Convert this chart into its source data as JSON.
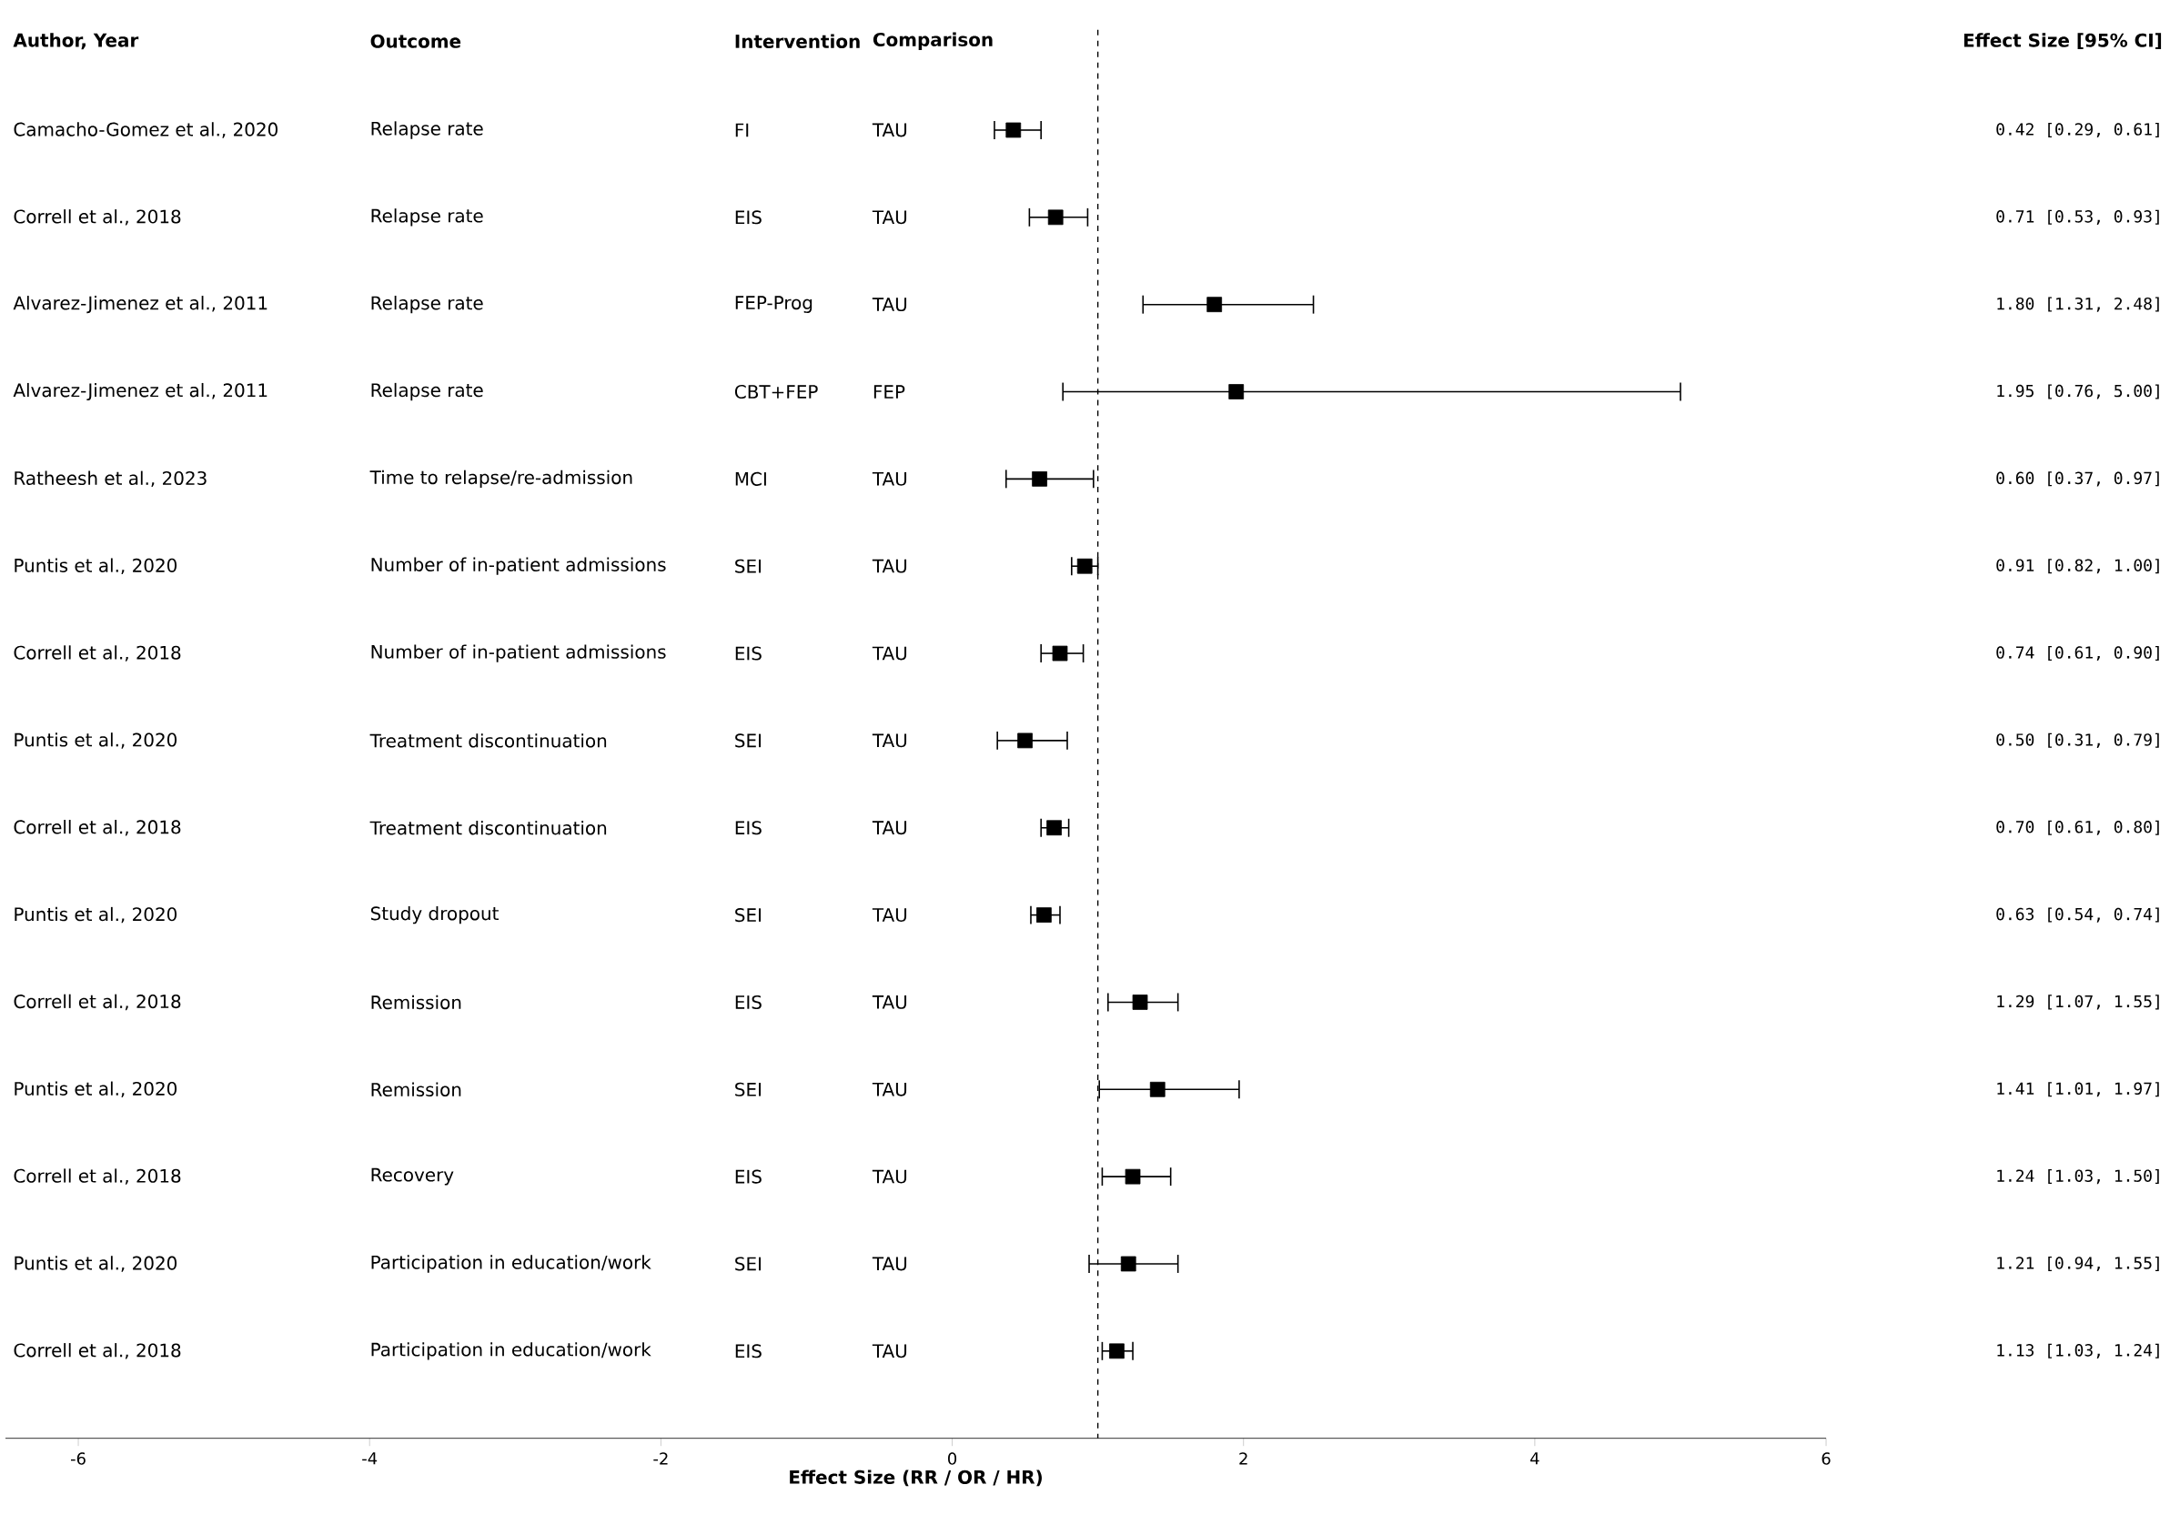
{
  "chart_data": {
    "type": "scatter",
    "orientation": "horizontal",
    "xlabel": "Effect Size (RR / OR / HR)",
    "categories": [
      "Camacho-Gomez et al., 2020",
      "Correll et al., 2018",
      "Alvarez-Jimenez et al., 2011",
      "Alvarez-Jimenez et al., 2011",
      "Ratheesh et al., 2023",
      "Puntis et al., 2020",
      "Correll et al., 2018",
      "Puntis et al., 2020",
      "Correll et al., 2018",
      "Puntis et al., 2020",
      "Correll et al., 2018",
      "Puntis et al., 2020",
      "Correll et al., 2018",
      "Puntis et al., 2020",
      "Correll et al., 2018"
    ],
    "values": [
      0.42,
      0.71,
      1.8,
      1.95,
      0.6,
      0.91,
      0.74,
      0.5,
      0.7,
      0.63,
      1.29,
      1.41,
      1.24,
      1.21,
      1.13
    ],
    "errors": [
      [
        0.29,
        0.61
      ],
      [
        0.53,
        0.93
      ],
      [
        1.31,
        2.48
      ],
      [
        0.76,
        5.0
      ],
      [
        0.37,
        0.97
      ],
      [
        0.82,
        1.0
      ],
      [
        0.61,
        0.9
      ],
      [
        0.31,
        0.79
      ],
      [
        0.61,
        0.8
      ],
      [
        0.54,
        0.74
      ],
      [
        1.07,
        1.55
      ],
      [
        1.01,
        1.97
      ],
      [
        1.03,
        1.5
      ],
      [
        0.94,
        1.55
      ],
      [
        1.03,
        1.24
      ]
    ],
    "value_labels": [
      "0.42 [0.29, 0.61]",
      "0.71 [0.53, 0.93]",
      "1.80 [1.31, 2.48]",
      "1.95 [0.76, 5.00]",
      "0.60 [0.37, 0.97]",
      "0.91 [0.82, 1.00]",
      "0.74 [0.61, 0.90]",
      "0.50 [0.31, 0.79]",
      "0.70 [0.61, 0.80]",
      "0.63 [0.54, 0.74]",
      "1.29 [1.07, 1.55]",
      "1.41 [1.01, 1.97]",
      "1.24 [1.03, 1.50]",
      "1.21 [0.94, 1.55]",
      "1.13 [1.03, 1.24]"
    ],
    "annotations": [
      "Author, Year",
      "Outcome",
      "Intervention",
      "Comparison",
      "Effect Size [95% CI]",
      "Relapse rate",
      "Relapse rate",
      "Relapse rate",
      "Relapse rate",
      "Time to relapse/re-admission",
      "Number of in-patient admissions",
      "Number of in-patient admissions",
      "Treatment discontinuation",
      "Treatment discontinuation",
      "Study dropout",
      "Remission",
      "Remission",
      "Recovery",
      "Participation in education/work",
      "Participation in education/work",
      "FI",
      "EIS",
      "FEP-Prog",
      "CBT+FEP",
      "MCI",
      "SEI",
      "EIS",
      "SEI",
      "EIS",
      "SEI",
      "EIS",
      "SEI",
      "EIS",
      "SEI",
      "EIS",
      "TAU",
      "TAU",
      "TAU",
      "FEP",
      "TAU",
      "TAU",
      "TAU",
      "TAU",
      "TAU",
      "TAU",
      "TAU",
      "TAU",
      "TAU",
      "TAU",
      "TAU"
    ],
    "color": "#000000",
    "marker": "square",
    "xlim": [
      -6.5,
      6
    ],
    "xticks": [
      -6,
      -4,
      -2,
      0,
      2,
      4,
      6
    ],
    "ref_lines": [
      {
        "axis": "x",
        "value": 1,
        "line_style": "dashed"
      }
    ],
    "tick_labels": "x"
  }
}
